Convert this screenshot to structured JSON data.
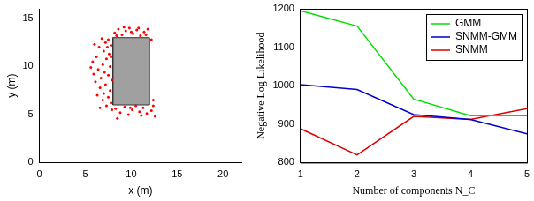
{
  "chart_data": [
    {
      "type": "scatter",
      "x_label": "x (m)",
      "y_label": "y (m)",
      "x": [
        7.5,
        7.2,
        6.8,
        7.8,
        6.5,
        7.0,
        7.6,
        6.2,
        7.3,
        5.8,
        6.9,
        7.7,
        6.4,
        7.1,
        5.6,
        7.5,
        6.7,
        7.9,
        6.1,
        7.2,
        6.6,
        7.7,
        7.0,
        6.3,
        7.5,
        6.9,
        7.8,
        7.3,
        6.6,
        7.9,
        6.0,
        5.9,
        7.4,
        7.8,
        8.2,
        8.6,
        9.0,
        9.4,
        9.8,
        10.2,
        10.6,
        11.0,
        11.4,
        11.8,
        8.4,
        9.2,
        10.0,
        10.8,
        11.6,
        8.3,
        8.8,
        9.3,
        9.7,
        10.1,
        10.5,
        10.9,
        11.3,
        11.7,
        12.2,
        12.6,
        8.5,
        9.9,
        11.1,
        12.4,
        12.2,
        12.4
      ],
      "values": [
        12.8,
        12.5,
        12.9,
        12.2,
        12.0,
        11.6,
        11.3,
        11.0,
        10.8,
        10.5,
        10.2,
        10.0,
        9.7,
        9.4,
        9.9,
        9.1,
        8.8,
        8.6,
        8.4,
        8.1,
        7.8,
        7.5,
        7.2,
        7.0,
        6.8,
        6.5,
        6.2,
        5.9,
        5.7,
        5.5,
        12.3,
        9.2,
        12.0,
        11.0,
        13.5,
        13.9,
        13.3,
        13.7,
        14.0,
        13.4,
        13.8,
        13.2,
        13.6,
        13.9,
        13.2,
        14.1,
        13.6,
        14.0,
        13.3,
        5.6,
        5.2,
        5.8,
        5.0,
        5.5,
        5.9,
        5.3,
        5.7,
        5.1,
        5.4,
        4.8,
        4.6,
        5.7,
        4.9,
        5.9,
        12.8,
        6.5
      ],
      "color": "#ff0000",
      "marker": "dot",
      "rectangle": {
        "x": [
          8,
          12
        ],
        "y": [
          6,
          13
        ],
        "color": "#a0a0a0"
      },
      "xlim": [
        0,
        22
      ],
      "xticks": [
        0,
        5,
        10,
        15,
        20
      ],
      "ylim": [
        0,
        16
      ],
      "yticks": [
        0,
        5,
        10,
        15
      ],
      "grid": false
    },
    {
      "type": "line",
      "x_label": "Number of components N_C",
      "y_label": "Negative Log Likelihood",
      "x": [
        1,
        2,
        3,
        4,
        5
      ],
      "series": [
        {
          "name": "GMM",
          "color": "#00e000",
          "values": [
            1195,
            1155,
            965,
            922,
            922
          ]
        },
        {
          "name": "SNMM-GMM",
          "color": "#0000cc",
          "values": [
            1003,
            990,
            925,
            912,
            875
          ]
        },
        {
          "name": "SNMM",
          "color": "#dd0000",
          "values": [
            888,
            820,
            920,
            912,
            940
          ]
        }
      ],
      "xlim": [
        1,
        5
      ],
      "xticks": [
        1,
        2,
        3,
        4,
        5
      ],
      "ylim": [
        800,
        1200
      ],
      "yticks": [
        800,
        900,
        1000,
        1100,
        1200
      ],
      "grid": false,
      "legend": "upper right"
    }
  ]
}
